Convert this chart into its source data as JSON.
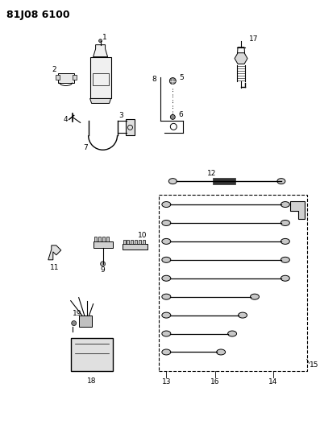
{
  "title": "81J08 6100",
  "bg_color": "#ffffff",
  "line_color": "#000000",
  "text_color": "#000000",
  "title_fontsize": 9,
  "label_fontsize": 6.5,
  "fig_width": 3.97,
  "fig_height": 5.33,
  "dpi": 100
}
